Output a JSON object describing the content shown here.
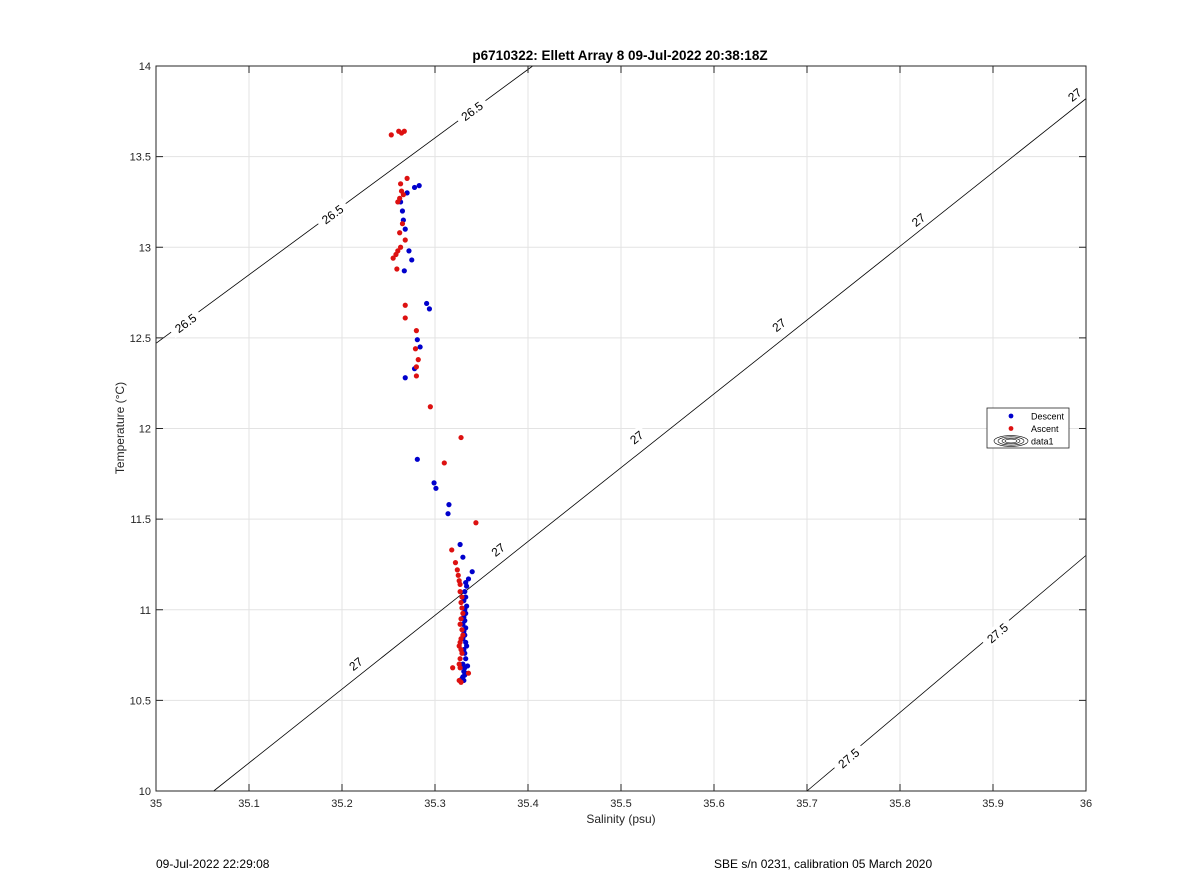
{
  "footer": {
    "left": "09-Jul-2022 22:29:08",
    "right": "SBE s/n 0231, calibration 05 March 2020"
  },
  "chart_data": {
    "type": "scatter",
    "title": "p6710322: Ellett Array 8 09-Jul-2022 20:38:18Z",
    "xlabel": "Salinity (psu)",
    "ylabel": "Temperature (°C)",
    "xlim": [
      35,
      36
    ],
    "ylim": [
      10,
      14
    ],
    "xticks": [
      "35",
      "35.1",
      "35.2",
      "35.3",
      "35.4",
      "35.5",
      "35.6",
      "35.7",
      "35.8",
      "35.9",
      "36"
    ],
    "yticks": [
      "10",
      "10.5",
      "11",
      "11.5",
      "12",
      "12.5",
      "13",
      "13.5",
      "14"
    ],
    "grid": true,
    "legend_position": "right",
    "colors": {
      "descent": "#0000cc",
      "ascent": "#dd1111",
      "contour": "#000000",
      "grid": "#e3e3e3"
    },
    "contours": [
      {
        "label": "26.5",
        "points": [
          [
            35.0,
            12.47
          ],
          [
            35.405,
            14.0
          ]
        ]
      },
      {
        "label": "27",
        "points": [
          [
            35.062,
            10.0
          ],
          [
            36.0,
            13.82
          ]
        ]
      },
      {
        "label": "27.5",
        "points": [
          [
            35.7,
            10.0
          ],
          [
            36.0,
            11.3
          ]
        ]
      }
    ],
    "contour_labels": [
      {
        "text": "26.5",
        "x": 35.34,
        "y": 13.75
      },
      {
        "text": "26.5",
        "x": 35.19,
        "y": 13.18
      },
      {
        "text": "26.5",
        "x": 35.032,
        "y": 12.58
      },
      {
        "text": "27",
        "x": 35.215,
        "y": 10.7
      },
      {
        "text": "27",
        "x": 35.368,
        "y": 11.33
      },
      {
        "text": "27",
        "x": 35.517,
        "y": 11.95
      },
      {
        "text": "27",
        "x": 35.67,
        "y": 12.57
      },
      {
        "text": "27",
        "x": 35.82,
        "y": 13.15
      },
      {
        "text": "27",
        "x": 35.988,
        "y": 13.84
      },
      {
        "text": "27.5",
        "x": 35.745,
        "y": 10.18
      },
      {
        "text": "27.5",
        "x": 35.905,
        "y": 10.87
      }
    ],
    "series": [
      {
        "name": "Descent",
        "type": "scatter",
        "color": "#0000cc",
        "x": [
          35.263,
          35.265,
          35.27,
          35.278,
          35.283,
          35.266,
          35.268,
          35.272,
          35.275,
          35.267,
          35.291,
          35.294,
          35.281,
          35.284,
          35.278,
          35.268,
          35.281,
          35.299,
          35.301,
          35.315,
          35.314,
          35.327,
          35.33,
          35.34,
          35.336,
          35.333,
          35.334,
          35.332,
          35.333,
          35.331,
          35.334,
          35.332,
          35.333,
          35.331,
          35.332,
          35.33,
          35.333,
          35.331,
          35.332,
          35.33,
          35.333,
          35.334,
          35.331,
          35.332,
          35.333,
          35.33,
          35.332,
          35.331,
          35.333,
          35.335,
          35.329,
          35.331,
          35.332,
          35.33
        ],
        "y": [
          13.25,
          13.2,
          13.3,
          13.33,
          13.34,
          13.15,
          13.1,
          12.98,
          12.93,
          12.87,
          12.69,
          12.66,
          12.49,
          12.45,
          12.33,
          12.28,
          11.83,
          11.7,
          11.67,
          11.58,
          11.53,
          11.36,
          11.29,
          11.21,
          11.17,
          11.15,
          11.13,
          11.1,
          11.07,
          11.05,
          11.02,
          11.0,
          10.98,
          10.96,
          10.94,
          10.92,
          10.9,
          10.88,
          10.86,
          10.84,
          10.82,
          10.8,
          10.78,
          10.76,
          10.73,
          10.7,
          10.68,
          10.66,
          10.65,
          10.69,
          10.62,
          10.61,
          10.64,
          10.63
        ]
      },
      {
        "name": "Ascent",
        "type": "scatter",
        "color": "#dd1111",
        "x": [
          35.253,
          35.261,
          35.264,
          35.267,
          35.263,
          35.27,
          35.264,
          35.266,
          35.262,
          35.26,
          35.265,
          35.268,
          35.262,
          35.263,
          35.26,
          35.258,
          35.255,
          35.259,
          35.268,
          35.268,
          35.28,
          35.279,
          35.282,
          35.28,
          35.28,
          35.295,
          35.328,
          35.31,
          35.344,
          35.318,
          35.322,
          35.324,
          35.325,
          35.326,
          35.327,
          35.327,
          35.329,
          35.328,
          35.329,
          35.33,
          35.328,
          35.327,
          35.329,
          35.33,
          35.328,
          35.327,
          35.326,
          35.328,
          35.329,
          35.327,
          35.326,
          35.327,
          35.336,
          35.319,
          35.326,
          35.328
        ],
        "y": [
          13.62,
          13.64,
          13.63,
          13.64,
          13.35,
          13.38,
          13.31,
          13.29,
          13.27,
          13.25,
          13.13,
          13.04,
          13.08,
          13.0,
          12.98,
          12.96,
          12.94,
          12.88,
          12.68,
          12.61,
          12.54,
          12.44,
          12.38,
          12.34,
          12.29,
          12.12,
          11.95,
          11.81,
          11.48,
          11.33,
          11.26,
          11.22,
          11.19,
          11.16,
          11.14,
          11.1,
          11.07,
          11.04,
          11.01,
          10.98,
          10.95,
          10.92,
          10.89,
          10.86,
          10.84,
          10.82,
          10.8,
          10.78,
          10.76,
          10.73,
          10.7,
          10.68,
          10.65,
          10.68,
          10.61,
          10.6
        ]
      },
      {
        "name": "data1",
        "type": "contour",
        "color": "#000000"
      }
    ]
  }
}
